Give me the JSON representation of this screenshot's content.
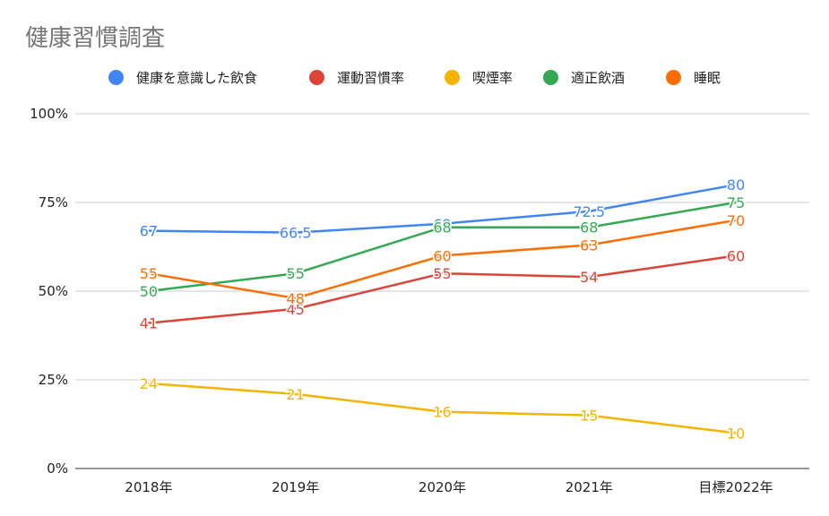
{
  "chart_data": {
    "type": "line",
    "title": "健康習慣調査",
    "categories": [
      "2018年",
      "2019年",
      "2020年",
      "2021年",
      "目標2022年"
    ],
    "ylim": [
      0,
      100
    ],
    "yticks": [
      "0%",
      "25%",
      "50%",
      "75%",
      "100%"
    ],
    "grid": true,
    "legend_position": "top",
    "series": [
      {
        "name": "健康を意識した飲食",
        "color": "#4285f4",
        "values": [
          67,
          66.5,
          69,
          72.5,
          80
        ]
      },
      {
        "name": "運動習慣率",
        "color": "#db4437",
        "values": [
          41,
          45,
          55,
          54,
          60
        ]
      },
      {
        "name": "喫煙率",
        "color": "#f4b400",
        "values": [
          24,
          21,
          16,
          15,
          10
        ]
      },
      {
        "name": "適正飲酒",
        "color": "#34a853",
        "values": [
          50,
          55,
          68,
          68,
          75
        ]
      },
      {
        "name": "睡眠",
        "color": "#ff6d01",
        "values": [
          55,
          48,
          60,
          63,
          70
        ]
      }
    ],
    "data_labels": [
      [
        "67",
        "66.5",
        "69",
        "72.5",
        "80"
      ],
      [
        "41",
        "45",
        "55",
        "54",
        "60"
      ],
      [
        "24",
        "21",
        "16",
        "15",
        "10"
      ],
      [
        "50",
        "55",
        "68",
        "68",
        "75"
      ],
      [
        "55",
        "48",
        "60",
        "63",
        "70"
      ]
    ]
  }
}
